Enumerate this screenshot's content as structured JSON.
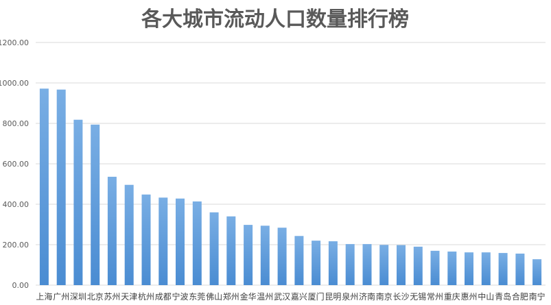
{
  "chart_data": {
    "type": "bar",
    "title": "各大城市流动人口数量排行榜",
    "xlabel": "",
    "ylabel": "",
    "ylim": [
      0,
      1200
    ],
    "yticks": [
      "0.00",
      "200.00",
      "400.00",
      "600.00",
      "800.00",
      "1000.00",
      "1200.00"
    ],
    "grid": true,
    "legend": "none",
    "bar_color_top": "#79aee4",
    "bar_color_bottom": "#4a8cd2",
    "grid_color": "#d9d9d9",
    "categories": [
      "上海",
      "广州",
      "深圳",
      "北京",
      "苏州",
      "天津",
      "杭州",
      "成都",
      "宁波",
      "东莞",
      "佛山",
      "郑州",
      "金华",
      "温州",
      "武汉",
      "嘉兴",
      "厦门",
      "昆明",
      "泉州",
      "济南",
      "南京",
      "长沙",
      "无锡",
      "常州",
      "重庆",
      "惠州",
      "中山",
      "青岛",
      "合肥",
      "南宁"
    ],
    "values": [
      972,
      967,
      818,
      794,
      536,
      496,
      448,
      433,
      428,
      414,
      360,
      340,
      298,
      294,
      284,
      243,
      220,
      217,
      203,
      203,
      199,
      198,
      190,
      170,
      166,
      162,
      162,
      159,
      156,
      128
    ]
  }
}
